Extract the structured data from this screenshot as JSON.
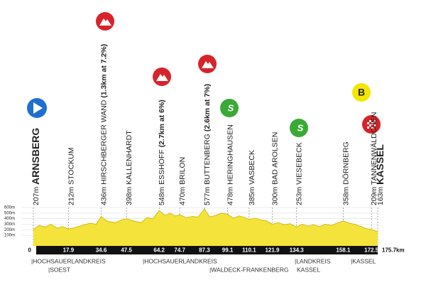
{
  "chart_data": {
    "type": "area",
    "color": "#f3e33b",
    "line_color": "#c9b400",
    "ylim": [
      0,
      600
    ],
    "yticks": [
      {
        "value": 600,
        "label": "600m"
      },
      {
        "value": 500,
        "label": "500m"
      },
      {
        "value": 400,
        "label": "400m"
      },
      {
        "value": 300,
        "label": "300m"
      },
      {
        "value": 200,
        "label": "200m"
      },
      {
        "value": 100,
        "label": "100m"
      }
    ],
    "grid": true,
    "xlim": [
      0,
      175.7
    ],
    "xticks": [
      0,
      17.9,
      34.6,
      47.5,
      64.2,
      74.7,
      87.3,
      99.1,
      110.1,
      121.9,
      134.3,
      158.1,
      172.5,
      {
        "value": 175.7,
        "label": "175.7km"
      }
    ],
    "waypoints": [
      {
        "elevation": "207m",
        "name": "ARNSBERG"
      },
      {
        "elevation": "212m",
        "name": "STOCKUM"
      },
      {
        "elevation": "436m",
        "name": "HIRSCHBERGER WAND",
        "detail": "(1.3km at 7.2%)"
      },
      {
        "elevation": "398m",
        "name": "KALLENHARDT"
      },
      {
        "elevation": "548m",
        "name": "ESSHOFF",
        "detail": "(2.7km at 6%)"
      },
      {
        "elevation": "470m",
        "name": "BRILON"
      },
      {
        "elevation": "577m",
        "name": "BUTTENBERG",
        "detail": "(2.6km at 7%)"
      },
      {
        "elevation": "478m",
        "name": "HERINGHAUSEN"
      },
      {
        "elevation": "385m",
        "name": "VASBECK"
      },
      {
        "elevation": "300m",
        "name": "BAD AROLSEN"
      },
      {
        "elevation": "253m",
        "name": "VIESEBECK"
      },
      {
        "elevation": "358m",
        "name": "DÖRNBERG"
      },
      {
        "elevation": "209m",
        "name": "TANNENWÄLDCHEN"
      },
      {
        "elevation": "163m",
        "name": "KASSEL"
      }
    ],
    "x": [
      0,
      3,
      6,
      9,
      12,
      15,
      17.9,
      21,
      25,
      29,
      32,
      34.6,
      38,
      42,
      45,
      47.5,
      51,
      55,
      58,
      61,
      64.2,
      67,
      70,
      72,
      74.7,
      78,
      81,
      84,
      87.3,
      90,
      93,
      96,
      99.1,
      102,
      105,
      108,
      110.1,
      113,
      116,
      119,
      121.9,
      125,
      128,
      131,
      134.3,
      137,
      140,
      143,
      146,
      149,
      152,
      155,
      158.1,
      161,
      164,
      167,
      170,
      172.5,
      175.7
    ],
    "values": [
      207,
      280,
      250,
      300,
      230,
      260,
      212,
      240,
      280,
      320,
      300,
      436,
      350,
      330,
      380,
      398,
      360,
      330,
      420,
      400,
      548,
      460,
      500,
      450,
      470,
      420,
      440,
      430,
      577,
      430,
      460,
      500,
      478,
      410,
      450,
      420,
      385,
      410,
      380,
      360,
      300,
      330,
      290,
      310,
      253,
      300,
      270,
      290,
      260,
      300,
      280,
      320,
      358,
      320,
      300,
      260,
      220,
      209,
      163
    ],
    "bonus_label": "B",
    "regions": [
      "|HOCHSAUERLANDKREIS",
      "|SOEST",
      "|HOCHSAUERLANDKREIS",
      "|WALDECK-FRANKENBERG",
      "|LANDKREIS",
      "KASSEL",
      "|KASSEL"
    ]
  }
}
